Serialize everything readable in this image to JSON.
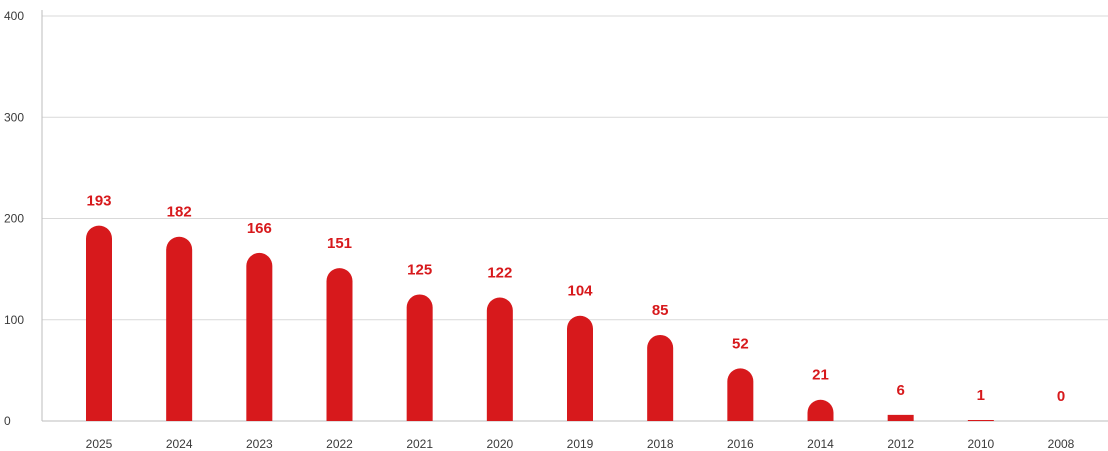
{
  "chart_data": {
    "type": "bar",
    "title": "",
    "xlabel": "",
    "ylabel": "",
    "categories": [
      "2025",
      "2024",
      "2023",
      "2022",
      "2021",
      "2020",
      "2019",
      "2018",
      "2016",
      "2014",
      "2012",
      "2010",
      "2008"
    ],
    "values": [
      193,
      182,
      166,
      151,
      125,
      122,
      104,
      85,
      52,
      21,
      6,
      1,
      0
    ],
    "ylim": [
      0,
      400
    ],
    "yticks": [
      0,
      100,
      200,
      300,
      400
    ],
    "grid": true,
    "legend": "none",
    "bar_color": "#d7191c",
    "label_color": "#d7191c"
  }
}
